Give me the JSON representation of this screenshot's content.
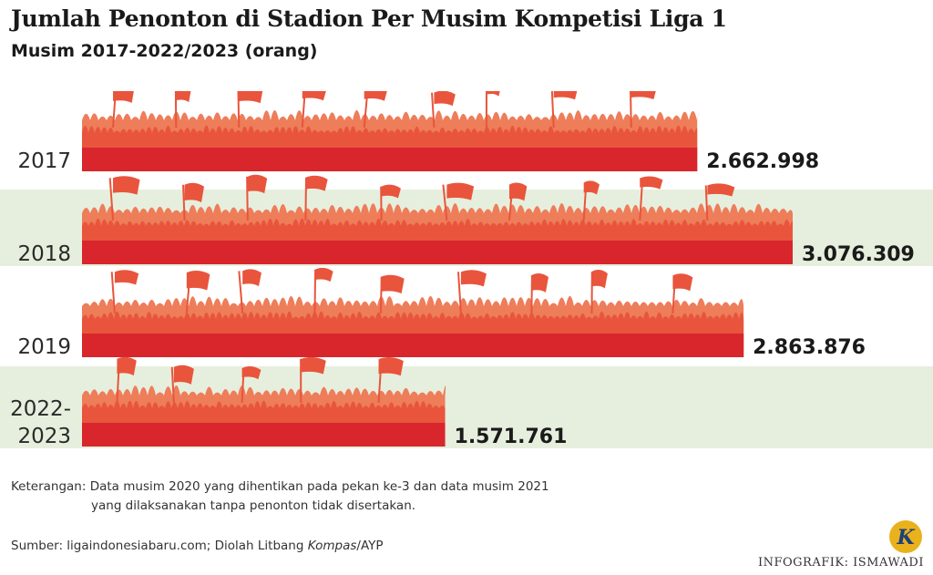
{
  "title": "Jumlah Penonton di Stadion Per Musim Kompetisi Liga 1",
  "subtitle": "Musim 2017-2022/2023 (orang)",
  "colors": {
    "bar": "#d8262c",
    "crowd_back": "#ee7d5a",
    "crowd_mid": "#e8553c",
    "band": "#e6efdd"
  },
  "chart_data": {
    "type": "bar",
    "orientation": "horizontal",
    "categories": [
      "2017",
      "2018",
      "2019",
      "2022-\n2023"
    ],
    "values": [
      2662998,
      3076309,
      2863876,
      1571761
    ],
    "value_labels": [
      "2.662.998",
      "3.076.309",
      "2.863.876",
      "1.571.761"
    ],
    "title": "Jumlah Penonton di Stadion Per Musim Kompetisi Liga 1",
    "subtitle": "Musim 2017-2022/2023 (orang)",
    "xlabel": "",
    "ylabel": "",
    "grid": false,
    "legend": "none"
  },
  "footer": {
    "note_label": "Keterangan:",
    "note_line1": "Data musim 2020 yang dihentikan pada pekan ke-3 dan data musim 2021",
    "note_line2": "yang dilaksanakan tanpa penonton tidak disertakan.",
    "source_prefix": "Sumber: ligaindonesiabaru.com; Diolah Litbang ",
    "source_italic": "Kompas",
    "source_suffix": "/AYP",
    "credit": "INFOGRAFIK: ISMAWADI",
    "logo_letter": "K"
  }
}
